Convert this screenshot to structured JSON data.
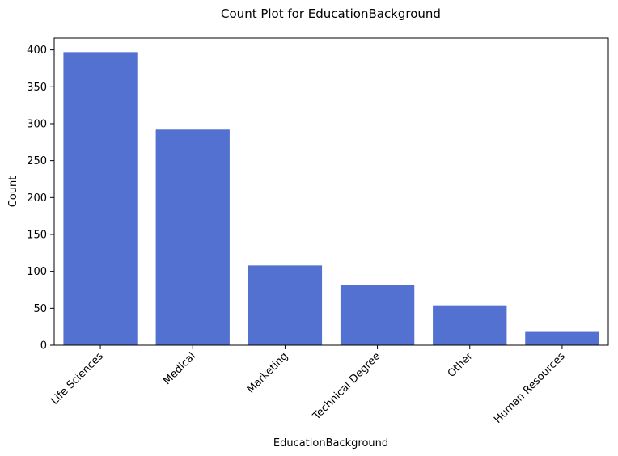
{
  "chart_data": {
    "type": "bar",
    "title": "Count Plot for EducationBackground",
    "xlabel": "EducationBackground",
    "ylabel": "Count",
    "categories": [
      "Life Sciences",
      "Medical",
      "Marketing",
      "Technical Degree",
      "Other",
      "Human Resources"
    ],
    "values": [
      397,
      292,
      108,
      81,
      54,
      18
    ],
    "ylim": [
      0,
      416
    ],
    "yticks": [
      0,
      50,
      100,
      150,
      200,
      250,
      300,
      350,
      400
    ],
    "bar_color": "#5371D0",
    "grid": false,
    "legend": false
  }
}
